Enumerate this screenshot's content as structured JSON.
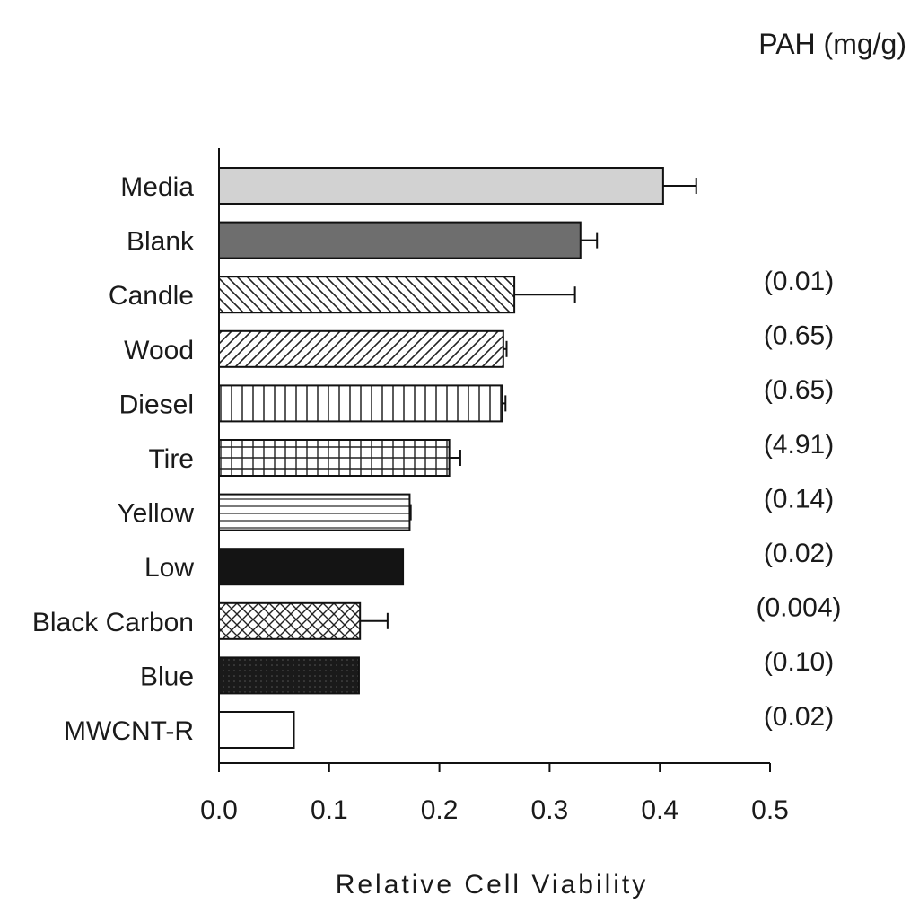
{
  "chart_data": {
    "type": "bar",
    "orientation": "horizontal",
    "title": "",
    "xlabel": "Relative Cell Viability",
    "ylabel": "",
    "xlim": [
      0.0,
      0.5
    ],
    "x_ticks": [
      "0.0",
      "0.1",
      "0.2",
      "0.3",
      "0.4",
      "0.5"
    ],
    "grid": false,
    "annotation_header": "PAH (mg/g)",
    "categories": [
      "Media",
      "Blank",
      "Candle",
      "Wood",
      "Diesel",
      "Tire",
      "Yellow",
      "Low",
      "Black Carbon",
      "Blue",
      "MWCNT-R"
    ],
    "values": [
      0.403,
      0.328,
      0.268,
      0.258,
      0.257,
      0.209,
      0.173,
      0.167,
      0.128,
      0.127,
      0.068
    ],
    "errors": [
      0.03,
      0.015,
      0.055,
      0.003,
      0.003,
      0.01,
      0.001,
      0.0,
      0.025,
      0.0,
      0.0
    ],
    "fills": [
      "lightgray",
      "darkgray",
      "diag-down",
      "diag-up",
      "vertical",
      "grid",
      "horizontal",
      "black",
      "crosshatch",
      "black-dotted",
      "white"
    ],
    "pah_values": [
      "(0.01)",
      "(0.65)",
      "(0.65)",
      "(4.91)",
      "(0.14)",
      "(0.02)",
      "(0.004)",
      "(0.10)",
      "(0.02)"
    ]
  }
}
